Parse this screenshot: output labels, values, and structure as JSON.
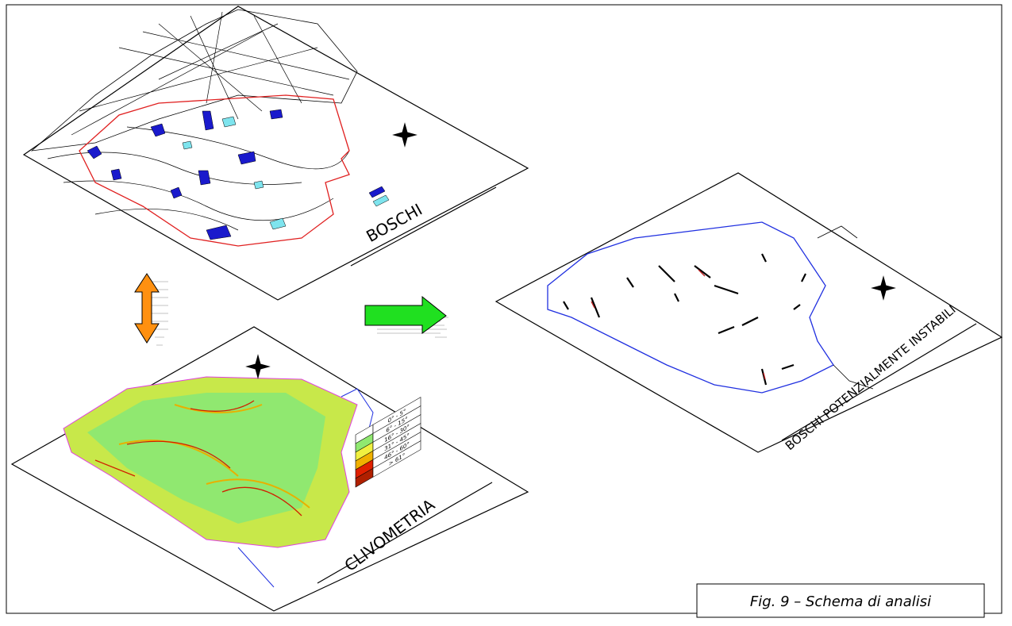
{
  "maps": [
    {
      "title": "BOSCHI"
    },
    {
      "title": "CLIVOMETRIA",
      "legend": [
        "0° - 5°",
        "6° - 15°",
        "16° - 30°",
        "31° - 45°",
        "46° - 60°",
        "> 61°"
      ]
    },
    {
      "title": "BOSCHI POTENZIALMENTE INSTABILI"
    }
  ],
  "caption": "Fig. 9 – Schema di analisi"
}
